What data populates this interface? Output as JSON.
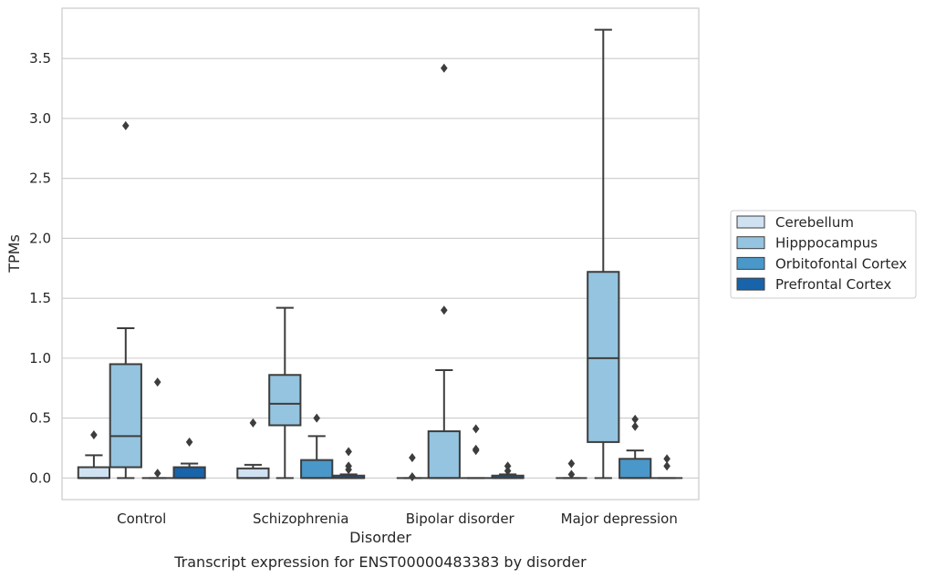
{
  "chart_data": {
    "type": "box",
    "title": "",
    "caption": "Transcript expression for ENST00000483383 by disorder",
    "xlabel": "Disorder",
    "ylabel": "TPMs",
    "ylim": [
      -0.18,
      3.92
    ],
    "yticks": [
      0.0,
      0.5,
      1.0,
      1.5,
      2.0,
      2.5,
      3.0,
      3.5
    ],
    "ytick_labels": [
      "0.0",
      "0.5",
      "1.0",
      "1.5",
      "2.0",
      "2.5",
      "3.0",
      "3.5"
    ],
    "grid": "horizontal",
    "legend_position": "right",
    "categories": [
      "Control",
      "Schizophrenia",
      "Bipolar disorder",
      "Major depression"
    ],
    "series": [
      {
        "name": "Cerebellum",
        "color": "#d0e1f2",
        "boxes": [
          {
            "whisker_low": 0.0,
            "q1": 0.0,
            "median": 0.0,
            "q3": 0.09,
            "whisker_high": 0.19,
            "outliers": [
              0.36
            ]
          },
          {
            "whisker_low": 0.0,
            "q1": 0.0,
            "median": 0.0,
            "q3": 0.08,
            "whisker_high": 0.11,
            "outliers": [
              0.46
            ]
          },
          {
            "whisker_low": 0.0,
            "q1": 0.0,
            "median": 0.0,
            "q3": 0.0,
            "whisker_high": 0.0,
            "outliers": [
              0.01,
              0.17
            ]
          },
          {
            "whisker_low": 0.0,
            "q1": 0.0,
            "median": 0.0,
            "q3": 0.0,
            "whisker_high": 0.0,
            "outliers": [
              0.03,
              0.12
            ]
          }
        ]
      },
      {
        "name": "Hipppocampus",
        "color": "#94c4df",
        "boxes": [
          {
            "whisker_low": 0.0,
            "q1": 0.09,
            "median": 0.35,
            "q3": 0.95,
            "whisker_high": 1.25,
            "outliers": [
              2.94
            ]
          },
          {
            "whisker_low": 0.0,
            "q1": 0.44,
            "median": 0.62,
            "q3": 0.86,
            "whisker_high": 1.42,
            "outliers": []
          },
          {
            "whisker_low": 0.0,
            "q1": 0.0,
            "median": 0.0,
            "q3": 0.39,
            "whisker_high": 0.9,
            "outliers": [
              1.4,
              3.42
            ]
          },
          {
            "whisker_low": 0.0,
            "q1": 0.3,
            "median": 1.0,
            "q3": 1.72,
            "whisker_high": 3.74,
            "outliers": []
          }
        ]
      },
      {
        "name": "Orbitofontal Cortex",
        "color": "#4a98c9",
        "boxes": [
          {
            "whisker_low": 0.0,
            "q1": 0.0,
            "median": 0.0,
            "q3": 0.0,
            "whisker_high": 0.0,
            "outliers": [
              0.04,
              0.8
            ]
          },
          {
            "whisker_low": 0.0,
            "q1": 0.0,
            "median": 0.0,
            "q3": 0.15,
            "whisker_high": 0.35,
            "outliers": [
              0.5
            ]
          },
          {
            "whisker_low": 0.0,
            "q1": 0.0,
            "median": 0.0,
            "q3": 0.0,
            "whisker_high": 0.0,
            "outliers": [
              0.23,
              0.24,
              0.41
            ]
          },
          {
            "whisker_low": 0.0,
            "q1": 0.0,
            "median": 0.0,
            "q3": 0.16,
            "whisker_high": 0.23,
            "outliers": [
              0.43,
              0.49
            ]
          }
        ]
      },
      {
        "name": "Prefrontal Cortex",
        "color": "#1764ab",
        "boxes": [
          {
            "whisker_low": 0.0,
            "q1": 0.0,
            "median": 0.0,
            "q3": 0.09,
            "whisker_high": 0.12,
            "outliers": [
              0.3
            ]
          },
          {
            "whisker_low": 0.0,
            "q1": 0.0,
            "median": 0.0,
            "q3": 0.02,
            "whisker_high": 0.03,
            "outliers": [
              0.07,
              0.1,
              0.22
            ]
          },
          {
            "whisker_low": 0.0,
            "q1": 0.0,
            "median": 0.0,
            "q3": 0.02,
            "whisker_high": 0.03,
            "outliers": [
              0.06,
              0.1
            ]
          },
          {
            "whisker_low": 0.0,
            "q1": 0.0,
            "median": 0.0,
            "q3": 0.0,
            "whisker_high": 0.0,
            "outliers": [
              0.1,
              0.16
            ]
          }
        ]
      }
    ]
  }
}
